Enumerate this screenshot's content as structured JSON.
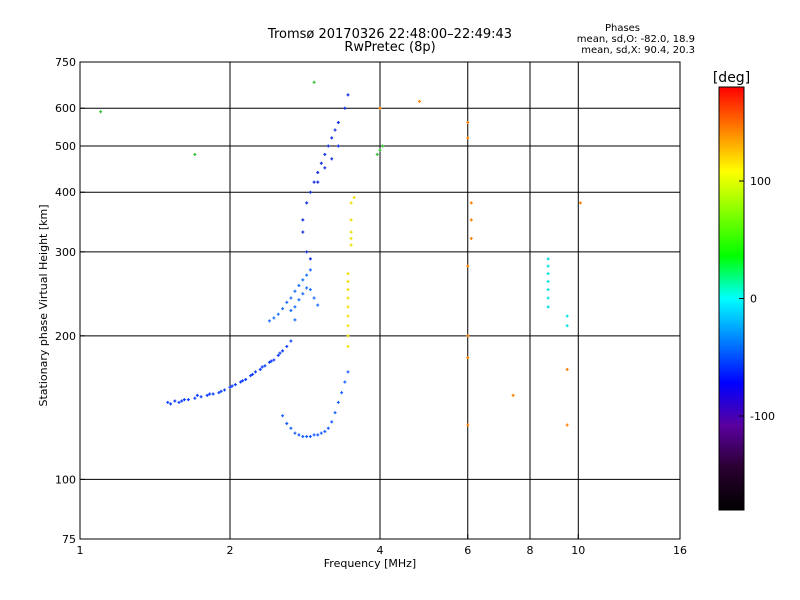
{
  "header": {
    "title_line1": "Tromsø 20170326 22:48:00–22:49:43",
    "title_line2": "RwPretec (8p)",
    "phases_label": "Phases",
    "stat_line1": "mean, sd,O: -82.0, 18.9",
    "stat_line2": "mean, sd,X:  90.4, 20.3"
  },
  "colorbar": {
    "unit": "[deg]",
    "ticks": [
      {
        "value": 100,
        "label": "100"
      },
      {
        "value": 0,
        "label": "0"
      },
      {
        "value": -100,
        "label": "-100"
      }
    ],
    "range": [
      -180,
      180
    ],
    "colors": [
      "#000000",
      "#2a0030",
      "#5a00a0",
      "#0000ff",
      "#0080ff",
      "#00ffff",
      "#00ff00",
      "#80ff00",
      "#ffff00",
      "#ff8000",
      "#ff0000"
    ]
  },
  "chart_data": {
    "type": "scatter",
    "xlabel": "Frequency [MHz]",
    "ylabel": "Stationary phase Virtual Height [km]",
    "xscale": "log",
    "yscale": "log",
    "xlim": [
      1,
      16
    ],
    "ylim": [
      75,
      750
    ],
    "xticks": [
      {
        "value": 1,
        "label": "1"
      },
      {
        "value": 2,
        "label": "2"
      },
      {
        "value": 4,
        "label": "4"
      },
      {
        "value": 6,
        "label": "6"
      },
      {
        "value": 8,
        "label": "8"
      },
      {
        "value": 10,
        "label": "10"
      },
      {
        "value": 16,
        "label": "16"
      }
    ],
    "xgrid": [
      2,
      4,
      6,
      8,
      10
    ],
    "yticks": [
      {
        "value": 75,
        "label": "75"
      },
      {
        "value": 100,
        "label": "100"
      },
      {
        "value": 200,
        "label": "200"
      },
      {
        "value": 300,
        "label": "300"
      },
      {
        "value": 400,
        "label": "400"
      },
      {
        "value": 500,
        "label": "500"
      },
      {
        "value": 600,
        "label": "600"
      },
      {
        "value": 750,
        "label": "750"
      }
    ],
    "ygrid": [
      100,
      200,
      300,
      400,
      500,
      600
    ],
    "grid": true,
    "point_groups": [
      {
        "name": "low-E-trace",
        "color": "#1040ff",
        "points": [
          [
            1.5,
            145
          ],
          [
            1.55,
            146
          ],
          [
            1.6,
            146
          ],
          [
            1.65,
            147
          ],
          [
            1.7,
            148
          ],
          [
            1.75,
            149
          ],
          [
            1.8,
            150
          ],
          [
            1.85,
            151
          ],
          [
            1.9,
            152
          ],
          [
            1.95,
            154
          ],
          [
            2.0,
            156
          ],
          [
            2.05,
            158
          ],
          [
            2.1,
            160
          ],
          [
            2.15,
            162
          ],
          [
            2.2,
            165
          ],
          [
            2.25,
            168
          ],
          [
            2.3,
            170
          ],
          [
            2.35,
            173
          ],
          [
            2.4,
            176
          ],
          [
            2.45,
            178
          ],
          [
            2.5,
            182
          ],
          [
            2.55,
            186
          ],
          [
            2.6,
            190
          ],
          [
            2.65,
            195
          ],
          [
            1.52,
            144
          ],
          [
            1.58,
            145
          ],
          [
            1.62,
            147
          ],
          [
            1.72,
            150
          ],
          [
            1.82,
            151
          ],
          [
            1.92,
            153
          ],
          [
            2.02,
            157
          ],
          [
            2.12,
            161
          ],
          [
            2.22,
            166
          ],
          [
            2.32,
            172
          ],
          [
            2.42,
            177
          ],
          [
            2.52,
            184
          ]
        ]
      },
      {
        "name": "lower-cusp",
        "color": "#1a60ff",
        "points": [
          [
            2.7,
            125
          ],
          [
            2.75,
            124
          ],
          [
            2.8,
            123
          ],
          [
            2.85,
            123
          ],
          [
            2.9,
            123
          ],
          [
            2.95,
            124
          ],
          [
            3.0,
            124
          ],
          [
            3.05,
            125
          ],
          [
            3.1,
            126
          ],
          [
            3.15,
            128
          ],
          [
            3.2,
            132
          ],
          [
            3.25,
            138
          ],
          [
            3.3,
            145
          ],
          [
            3.35,
            152
          ],
          [
            3.4,
            160
          ],
          [
            3.45,
            168
          ],
          [
            2.65,
            128
          ],
          [
            2.6,
            131
          ],
          [
            2.55,
            136
          ]
        ]
      },
      {
        "name": "F-trace",
        "color": "#1a70ff",
        "points": [
          [
            2.4,
            215
          ],
          [
            2.45,
            218
          ],
          [
            2.5,
            222
          ],
          [
            2.55,
            228
          ],
          [
            2.6,
            235
          ],
          [
            2.65,
            240
          ],
          [
            2.7,
            248
          ],
          [
            2.75,
            255
          ],
          [
            2.8,
            262
          ],
          [
            2.85,
            268
          ],
          [
            2.9,
            275
          ],
          [
            2.7,
            230
          ],
          [
            2.75,
            238
          ],
          [
            2.8,
            245
          ],
          [
            2.85,
            252
          ],
          [
            2.65,
            226
          ],
          [
            2.7,
            216
          ],
          [
            2.9,
            250
          ],
          [
            2.95,
            240
          ],
          [
            3.0,
            232
          ]
        ]
      },
      {
        "name": "high-F-trace",
        "color": "#1030e0",
        "points": [
          [
            2.8,
            350
          ],
          [
            2.85,
            380
          ],
          [
            2.9,
            400
          ],
          [
            2.95,
            420
          ],
          [
            3.0,
            440
          ],
          [
            3.05,
            460
          ],
          [
            3.1,
            480
          ],
          [
            3.15,
            500
          ],
          [
            3.2,
            520
          ],
          [
            3.25,
            540
          ],
          [
            3.3,
            560
          ],
          [
            3.4,
            600
          ],
          [
            3.45,
            640
          ],
          [
            2.8,
            330
          ],
          [
            2.85,
            300
          ],
          [
            2.9,
            290
          ],
          [
            3.0,
            420
          ],
          [
            3.1,
            450
          ],
          [
            3.2,
            470
          ],
          [
            3.3,
            500
          ]
        ]
      },
      {
        "name": "X-trace",
        "color": "#f0e000",
        "points": [
          [
            3.45,
            190
          ],
          [
            3.45,
            200
          ],
          [
            3.45,
            210
          ],
          [
            3.45,
            220
          ],
          [
            3.45,
            230
          ],
          [
            3.45,
            240
          ],
          [
            3.45,
            250
          ],
          [
            3.45,
            260
          ],
          [
            3.45,
            270
          ],
          [
            3.5,
            310
          ],
          [
            3.5,
            320
          ],
          [
            3.5,
            330
          ],
          [
            3.5,
            350
          ],
          [
            3.5,
            380
          ],
          [
            3.55,
            390
          ]
        ]
      },
      {
        "name": "cyan-column",
        "color": "#00e0e0",
        "points": [
          [
            8.7,
            230
          ],
          [
            8.7,
            240
          ],
          [
            8.7,
            250
          ],
          [
            8.7,
            260
          ],
          [
            8.7,
            270
          ],
          [
            8.7,
            280
          ],
          [
            8.7,
            290
          ],
          [
            9.5,
            210
          ],
          [
            9.5,
            220
          ]
        ]
      },
      {
        "name": "scattered",
        "color": "#ff8000",
        "points": [
          [
            4.0,
            600
          ],
          [
            4.8,
            620
          ],
          [
            6.0,
            560
          ],
          [
            6.0,
            520
          ],
          [
            6.1,
            380
          ],
          [
            6.1,
            350
          ],
          [
            6.1,
            320
          ],
          [
            6.0,
            280
          ],
          [
            6.0,
            200
          ],
          [
            6.0,
            180
          ],
          [
            6.0,
            130
          ],
          [
            7.4,
            150
          ],
          [
            9.5,
            170
          ],
          [
            9.5,
            130
          ],
          [
            10.1,
            380
          ]
        ]
      },
      {
        "name": "misc-green",
        "color": "#30c030",
        "points": [
          [
            4.0,
            490
          ],
          [
            4.05,
            500
          ],
          [
            3.95,
            480
          ],
          [
            1.7,
            480
          ],
          [
            1.1,
            590
          ],
          [
            2.95,
            680
          ]
        ]
      }
    ]
  }
}
